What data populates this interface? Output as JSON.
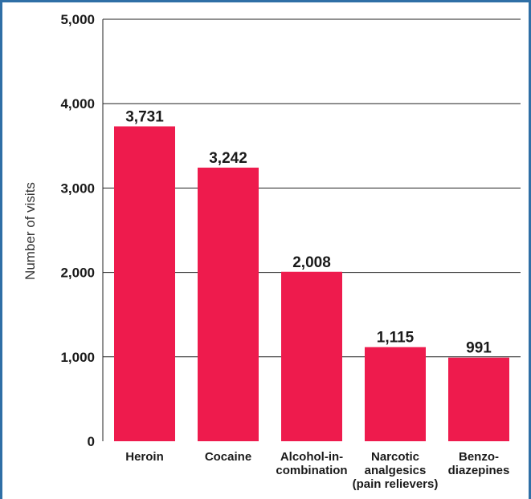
{
  "chart_data": {
    "type": "bar",
    "ylabel": "Number of visits",
    "ylim": [
      0,
      5000
    ],
    "yticks": [
      0,
      1000,
      2000,
      3000,
      4000,
      5000
    ],
    "ytick_labels": [
      "0",
      "1,000",
      "2,000",
      "3,000",
      "4,000",
      "5,000"
    ],
    "grid": true,
    "categories": [
      [
        "Heroin"
      ],
      [
        "Cocaine"
      ],
      [
        "Alcohol-in-",
        "combination"
      ],
      [
        "Narcotic",
        "analgesics",
        "(pain relievers)"
      ],
      [
        "Benzo-",
        "diazepines"
      ]
    ],
    "values": [
      3731,
      3242,
      2008,
      1115,
      991
    ],
    "value_labels": [
      "3,731",
      "3,242",
      "2,008",
      "1,115",
      "991"
    ],
    "bar_color": "#ee1b4d"
  }
}
